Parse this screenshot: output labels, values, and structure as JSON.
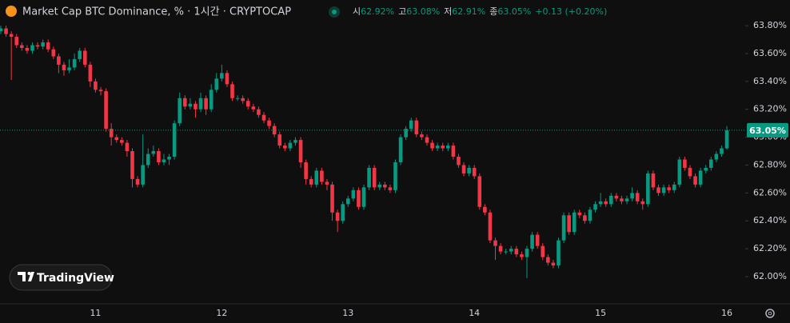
{
  "chart_data": {
    "type": "candlestick",
    "title": "Market Cap BTC Dominance, % · 1시간 · CRYPTOCAP",
    "ohlc_legend": [
      {
        "label": "시",
        "value": "62.92%"
      },
      {
        "label": "고",
        "value": "63.08%"
      },
      {
        "label": "저",
        "value": "62.91%"
      },
      {
        "label": "종",
        "value": "63.05%"
      }
    ],
    "change": "+0.13 (+0.20%)",
    "logo": "TradingView",
    "up_color": "#089981",
    "down_color": "#f23645",
    "categories": [
      null,
      null,
      null,
      null,
      null,
      null,
      null,
      null,
      null,
      null,
      null,
      null,
      null,
      null,
      null,
      null,
      null,
      null,
      "11",
      null,
      null,
      null,
      null,
      null,
      null,
      null,
      null,
      null,
      null,
      null,
      null,
      null,
      null,
      null,
      null,
      null,
      null,
      null,
      null,
      null,
      null,
      null,
      "12",
      null,
      null,
      null,
      null,
      null,
      null,
      null,
      null,
      null,
      null,
      null,
      null,
      null,
      null,
      null,
      null,
      null,
      null,
      null,
      null,
      null,
      null,
      null,
      "13",
      null,
      null,
      null,
      null,
      null,
      null,
      null,
      null,
      null,
      null,
      null,
      null,
      null,
      null,
      null,
      null,
      null,
      null,
      null,
      null,
      null,
      null,
      null,
      "14",
      null,
      null,
      null,
      null,
      null,
      null,
      null,
      null,
      null,
      null,
      null,
      null,
      null,
      null,
      null,
      null,
      null,
      null,
      null,
      null,
      null,
      null,
      null,
      "15",
      null,
      null,
      null,
      null,
      null,
      null,
      null,
      null,
      null,
      null,
      null,
      null,
      null,
      null,
      null,
      null,
      null,
      null,
      null,
      null,
      null,
      null,
      null,
      "16"
    ],
    "open": [
      63.76,
      63.78,
      63.74,
      63.72,
      63.66,
      63.64,
      63.62,
      63.66,
      63.65,
      63.68,
      63.63,
      63.58,
      63.52,
      63.48,
      63.5,
      63.56,
      63.62,
      63.52,
      63.4,
      63.34,
      63.33,
      63.06,
      63.0,
      62.98,
      62.96,
      62.9,
      62.7,
      62.66,
      62.8,
      62.88,
      62.9,
      62.82,
      62.84,
      62.86,
      63.1,
      63.28,
      63.22,
      63.24,
      63.2,
      63.28,
      63.2,
      63.34,
      63.42,
      63.46,
      63.38,
      63.28,
      63.28,
      63.26,
      63.22,
      63.2,
      63.16,
      63.12,
      63.08,
      63.02,
      62.94,
      62.92,
      62.96,
      62.98,
      62.82,
      62.7,
      62.66,
      62.76,
      62.68,
      62.66,
      62.46,
      62.4,
      62.52,
      62.56,
      62.62,
      62.5,
      62.64,
      62.78,
      62.64,
      62.66,
      62.64,
      62.62,
      62.82,
      63.0,
      63.06,
      63.12,
      63.02,
      63.0,
      62.96,
      62.92,
      62.94,
      62.92,
      62.94,
      62.86,
      62.8,
      62.74,
      62.78,
      62.72,
      62.5,
      62.46,
      62.26,
      62.22,
      62.18,
      62.18,
      62.2,
      62.16,
      62.14,
      62.2,
      62.3,
      62.22,
      62.14,
      62.1,
      62.08,
      62.26,
      62.44,
      62.32,
      62.46,
      62.44,
      62.4,
      62.48,
      62.52,
      62.54,
      62.52,
      62.58,
      62.56,
      62.54,
      62.56,
      62.6,
      62.54,
      62.52,
      62.74,
      62.64,
      62.6,
      62.64,
      62.62,
      62.66,
      62.84,
      62.78,
      62.72,
      62.66,
      62.76,
      62.78,
      62.84,
      62.88,
      62.92
    ],
    "high": [
      63.8,
      63.8,
      63.76,
      63.74,
      63.68,
      63.66,
      63.68,
      63.68,
      63.7,
      63.7,
      63.65,
      63.6,
      63.54,
      63.56,
      63.6,
      63.64,
      63.64,
      63.54,
      63.42,
      63.36,
      63.35,
      63.1,
      63.02,
      63.0,
      62.98,
      62.92,
      62.72,
      63.02,
      62.92,
      62.94,
      62.92,
      62.88,
      62.88,
      63.12,
      63.32,
      63.3,
      63.28,
      63.26,
      63.32,
      63.3,
      63.38,
      63.46,
      63.52,
      63.48,
      63.4,
      63.3,
      63.3,
      63.28,
      63.24,
      63.22,
      63.18,
      63.14,
      63.1,
      63.04,
      62.96,
      62.98,
      63.0,
      63.0,
      62.84,
      62.72,
      62.78,
      62.78,
      62.7,
      62.68,
      62.48,
      62.54,
      62.58,
      62.64,
      62.64,
      62.66,
      62.8,
      62.8,
      62.68,
      62.68,
      62.66,
      62.84,
      63.02,
      63.08,
      63.14,
      63.14,
      63.04,
      63.02,
      62.98,
      62.96,
      62.96,
      62.96,
      62.96,
      62.88,
      62.82,
      62.8,
      62.8,
      62.74,
      62.52,
      62.48,
      62.28,
      62.24,
      62.2,
      62.22,
      62.22,
      62.18,
      62.22,
      62.32,
      62.32,
      62.24,
      62.16,
      62.12,
      62.28,
      62.46,
      62.46,
      62.48,
      62.48,
      62.46,
      62.5,
      62.54,
      62.6,
      62.56,
      62.6,
      62.6,
      62.58,
      62.58,
      62.64,
      62.62,
      62.56,
      62.76,
      62.76,
      62.66,
      62.66,
      62.66,
      62.68,
      62.86,
      62.86,
      62.8,
      62.74,
      62.78,
      62.8,
      62.86,
      62.9,
      62.94,
      63.08
    ],
    "low": [
      63.74,
      63.72,
      63.41,
      63.64,
      63.62,
      63.6,
      63.6,
      63.63,
      63.63,
      63.61,
      63.56,
      63.46,
      63.44,
      63.46,
      63.48,
      63.54,
      63.5,
      63.36,
      63.32,
      63.3,
      63.04,
      62.94,
      62.96,
      62.94,
      62.86,
      62.64,
      62.64,
      62.64,
      62.78,
      62.86,
      62.8,
      62.8,
      62.8,
      62.84,
      63.08,
      63.2,
      63.2,
      63.14,
      63.18,
      63.16,
      63.18,
      63.32,
      63.4,
      63.36,
      63.26,
      63.26,
      63.24,
      63.2,
      63.18,
      63.14,
      63.1,
      63.06,
      63.0,
      62.92,
      62.9,
      62.9,
      62.94,
      62.78,
      62.66,
      62.64,
      62.64,
      62.66,
      62.62,
      62.4,
      62.32,
      62.38,
      62.5,
      62.54,
      62.48,
      62.48,
      62.62,
      62.62,
      62.62,
      62.62,
      62.6,
      62.6,
      62.8,
      62.98,
      63.04,
      63.0,
      62.98,
      62.94,
      62.9,
      62.9,
      62.9,
      62.9,
      62.84,
      62.78,
      62.72,
      62.72,
      62.7,
      62.48,
      62.44,
      62.24,
      62.12,
      62.16,
      62.16,
      62.16,
      62.14,
      62.12,
      61.99,
      62.18,
      62.2,
      62.12,
      62.08,
      62.06,
      62.06,
      62.24,
      62.3,
      62.3,
      62.42,
      62.38,
      62.38,
      62.46,
      62.5,
      62.5,
      62.5,
      62.54,
      62.52,
      62.52,
      62.54,
      62.52,
      62.48,
      62.5,
      62.62,
      62.58,
      62.58,
      62.6,
      62.6,
      62.64,
      62.76,
      62.7,
      62.64,
      62.64,
      62.74,
      62.76,
      62.82,
      62.86,
      62.91
    ],
    "close": [
      63.78,
      63.74,
      63.72,
      63.66,
      63.64,
      63.62,
      63.66,
      63.65,
      63.68,
      63.63,
      63.58,
      63.52,
      63.48,
      63.5,
      63.56,
      63.62,
      63.52,
      63.4,
      63.34,
      63.33,
      63.06,
      63.0,
      62.98,
      62.96,
      62.9,
      62.7,
      62.66,
      62.8,
      62.88,
      62.9,
      62.82,
      62.84,
      62.86,
      63.1,
      63.28,
      63.22,
      63.24,
      63.2,
      63.28,
      63.2,
      63.34,
      63.42,
      63.46,
      63.38,
      63.28,
      63.28,
      63.26,
      63.22,
      63.2,
      63.16,
      63.12,
      63.08,
      63.02,
      62.94,
      62.92,
      62.96,
      62.98,
      62.82,
      62.7,
      62.66,
      62.76,
      62.68,
      62.66,
      62.46,
      62.4,
      62.52,
      62.56,
      62.62,
      62.5,
      62.64,
      62.78,
      62.64,
      62.66,
      62.64,
      62.62,
      62.82,
      63.0,
      63.06,
      63.12,
      63.02,
      63.0,
      62.96,
      62.92,
      62.94,
      62.92,
      62.94,
      62.86,
      62.8,
      62.74,
      62.78,
      62.72,
      62.5,
      62.46,
      62.26,
      62.22,
      62.18,
      62.18,
      62.2,
      62.16,
      62.14,
      62.2,
      62.3,
      62.22,
      62.14,
      62.1,
      62.08,
      62.26,
      62.44,
      62.32,
      62.46,
      62.44,
      62.4,
      62.48,
      62.52,
      62.54,
      62.52,
      62.58,
      62.56,
      62.54,
      62.56,
      62.6,
      62.54,
      62.52,
      62.74,
      62.64,
      62.6,
      62.64,
      62.62,
      62.66,
      62.84,
      62.78,
      62.72,
      62.66,
      62.76,
      62.78,
      62.84,
      62.88,
      62.92,
      63.05
    ],
    "last_price": 63.05,
    "last_price_label": "63.05%",
    "ylim": [
      61.805,
      63.984
    ],
    "yticks": [
      {
        "value": 62.0,
        "label": "62.00%"
      },
      {
        "value": 62.2,
        "label": "62.20%"
      },
      {
        "value": 62.4,
        "label": "62.40%"
      },
      {
        "value": 62.6,
        "label": "62.60%"
      },
      {
        "value": 62.8,
        "label": "62.80%"
      },
      {
        "value": 63.0,
        "label": "63.00%"
      },
      {
        "value": 63.2,
        "label": "63.20%"
      },
      {
        "value": 63.4,
        "label": "63.40%"
      },
      {
        "value": 63.6,
        "label": "63.60%"
      },
      {
        "value": 63.8,
        "label": "63.80%"
      }
    ],
    "grid": false
  }
}
